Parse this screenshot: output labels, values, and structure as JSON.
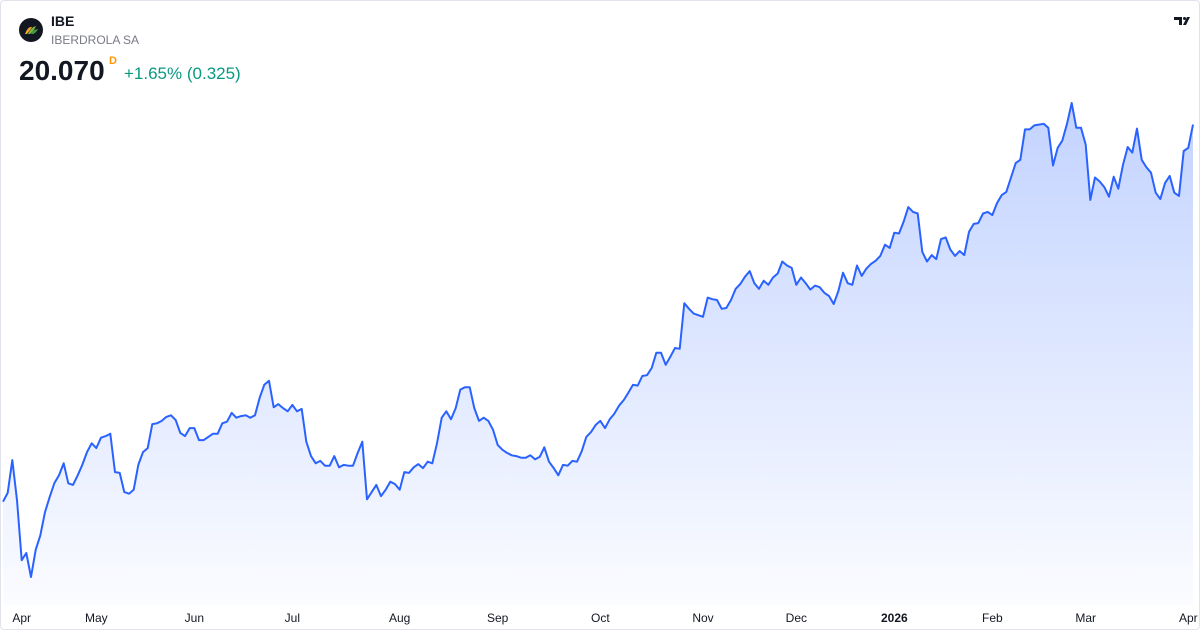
{
  "header": {
    "symbol": "IBE",
    "name": "IBERDROLA SA",
    "price": "20.070",
    "price_flag": "D",
    "change": "+1.65% (0.325)"
  },
  "chart_data": {
    "type": "area",
    "color": "#2962ff",
    "xticks": [
      {
        "value": 2,
        "label": "Apr"
      },
      {
        "value": 20,
        "label": "May"
      },
      {
        "value": 41,
        "label": "Jun"
      },
      {
        "value": 62,
        "label": "Jul"
      },
      {
        "value": 85,
        "label": "Aug"
      },
      {
        "value": 106,
        "label": "Sep"
      },
      {
        "value": 128,
        "label": "Oct"
      },
      {
        "value": 150,
        "label": "Nov"
      },
      {
        "value": 170,
        "label": "Dec"
      },
      {
        "value": 191,
        "label": "2026"
      },
      {
        "value": 212,
        "label": "Feb"
      },
      {
        "value": 232,
        "label": "Mar"
      },
      {
        "value": 254,
        "label": "Apr"
      }
    ],
    "values": [
      15.36,
      15.47,
      15.88,
      15.38,
      14.63,
      14.72,
      14.42,
      14.76,
      14.94,
      15.23,
      15.42,
      15.59,
      15.69,
      15.84,
      15.59,
      15.57,
      15.69,
      15.82,
      15.98,
      16.09,
      16.03,
      16.16,
      16.18,
      16.21,
      15.73,
      15.72,
      15.48,
      15.46,
      15.51,
      15.82,
      15.98,
      16.03,
      16.33,
      16.34,
      16.37,
      16.42,
      16.44,
      16.38,
      16.22,
      16.18,
      16.28,
      16.28,
      16.13,
      16.13,
      16.17,
      16.21,
      16.21,
      16.34,
      16.36,
      16.47,
      16.41,
      16.43,
      16.44,
      16.41,
      16.44,
      16.66,
      16.82,
      16.87,
      16.54,
      16.58,
      16.53,
      16.49,
      16.57,
      16.49,
      16.52,
      16.11,
      15.93,
      15.84,
      15.87,
      15.81,
      15.81,
      15.93,
      15.79,
      15.82,
      15.81,
      15.81,
      15.97,
      16.11,
      15.39,
      15.48,
      15.57,
      15.43,
      15.51,
      15.61,
      15.58,
      15.51,
      15.73,
      15.72,
      15.79,
      15.83,
      15.78,
      15.86,
      15.84,
      16.09,
      16.41,
      16.49,
      16.39,
      16.53,
      16.76,
      16.79,
      16.79,
      16.53,
      16.37,
      16.41,
      16.37,
      16.26,
      16.07,
      16.01,
      15.97,
      15.94,
      15.93,
      15.91,
      15.91,
      15.94,
      15.89,
      15.92,
      16.04,
      15.86,
      15.78,
      15.69,
      15.82,
      15.81,
      15.87,
      15.86,
      15.99,
      16.17,
      16.23,
      16.32,
      16.37,
      16.28,
      16.39,
      16.46,
      16.56,
      16.63,
      16.72,
      16.82,
      16.81,
      16.93,
      16.94,
      17.03,
      17.22,
      17.22,
      17.07,
      17.17,
      17.28,
      17.27,
      17.84,
      17.77,
      17.71,
      17.69,
      17.67,
      17.91,
      17.89,
      17.88,
      17.77,
      17.78,
      17.88,
      18.02,
      18.08,
      18.17,
      18.24,
      18.09,
      18.02,
      18.12,
      18.07,
      18.16,
      18.21,
      18.36,
      18.31,
      18.28,
      18.07,
      18.16,
      18.09,
      18.01,
      18.06,
      18.04,
      17.97,
      17.93,
      17.83,
      17.99,
      18.22,
      18.09,
      18.07,
      18.31,
      18.18,
      18.27,
      18.33,
      18.37,
      18.43,
      18.57,
      18.53,
      18.72,
      18.71,
      18.86,
      19.04,
      18.98,
      18.96,
      18.48,
      18.36,
      18.44,
      18.39,
      18.64,
      18.66,
      18.51,
      18.43,
      18.49,
      18.44,
      18.73,
      18.83,
      18.84,
      18.96,
      18.98,
      18.94,
      19.09,
      19.19,
      19.23,
      19.41,
      19.59,
      19.63,
      20.01,
      20.01,
      20.06,
      20.07,
      20.08,
      20.03,
      19.56,
      19.78,
      19.87,
      20.08,
      20.34,
      20.03,
      20.03,
      19.82,
      19.13,
      19.41,
      19.36,
      19.29,
      19.17,
      19.42,
      19.27,
      19.57,
      19.79,
      19.72,
      20.02,
      19.63,
      19.54,
      19.47,
      19.22,
      19.14,
      19.34,
      19.43,
      19.22,
      19.18,
      19.74,
      19.78,
      20.07
    ]
  }
}
